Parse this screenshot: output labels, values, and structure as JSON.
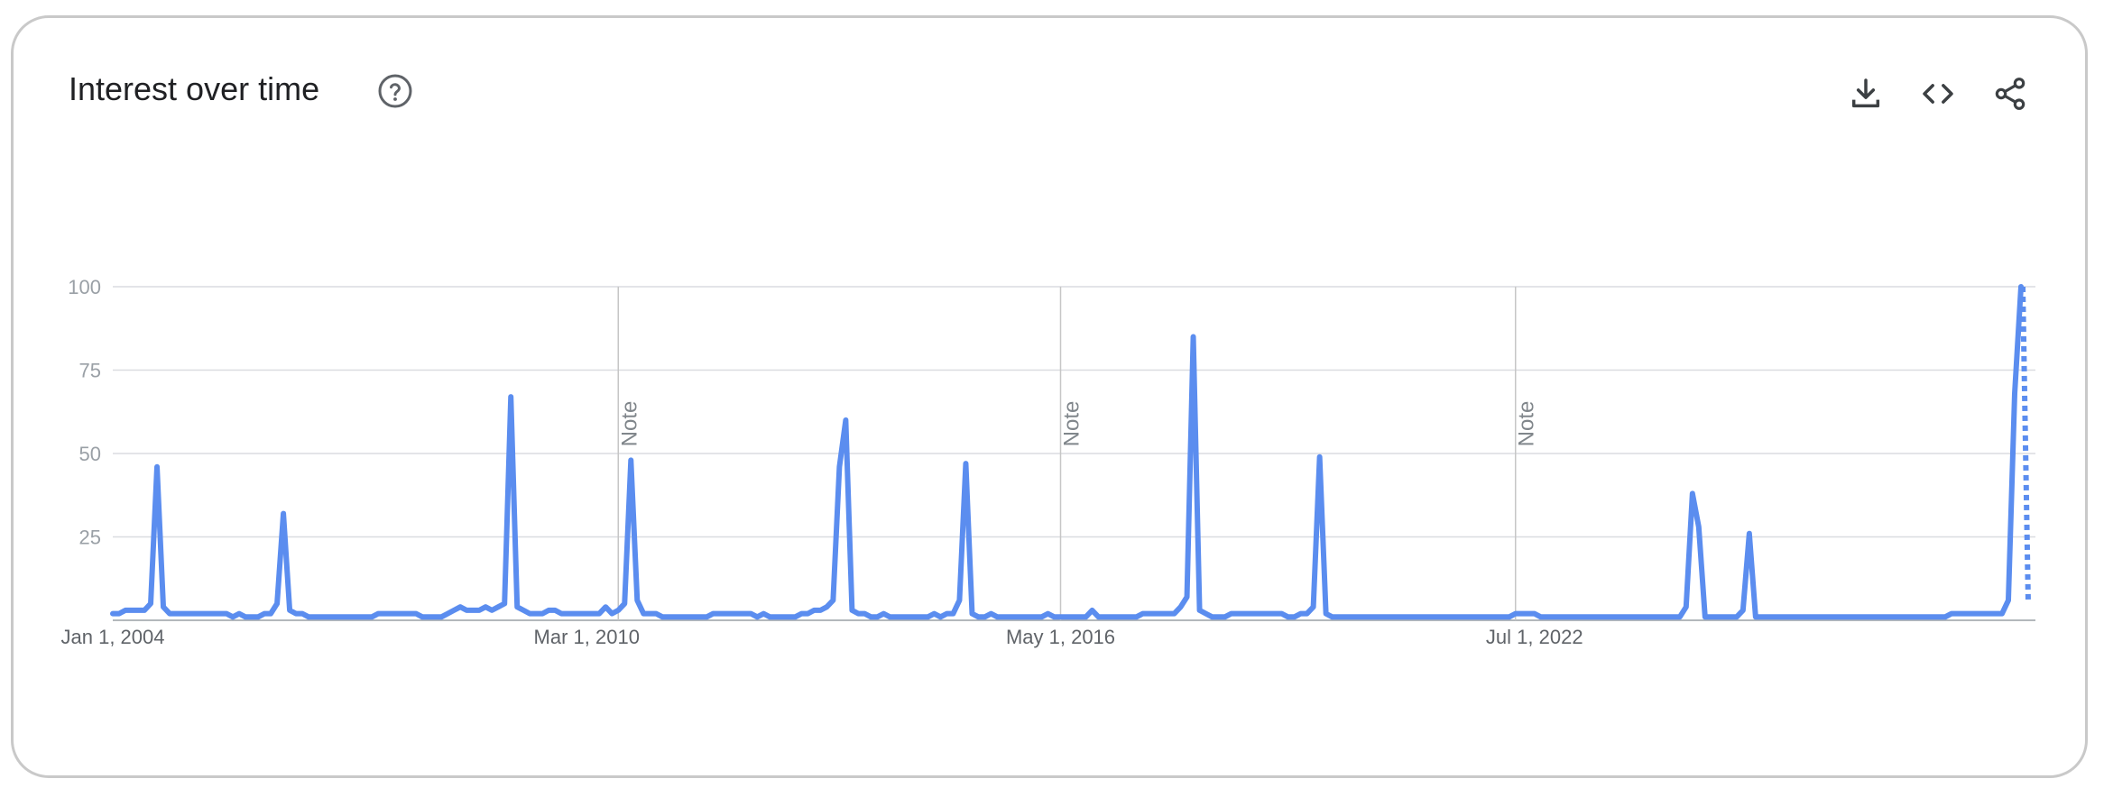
{
  "card": {
    "title": "Interest over time",
    "icons": [
      "help-icon",
      "download-icon",
      "embed-icon",
      "share-icon"
    ]
  },
  "colors": {
    "line": "#5b8def",
    "grid": "#dadce0",
    "tick_text": "#9aa0a6",
    "x_text": "#5f6368",
    "note_text": "#80868b"
  },
  "chart_data": {
    "type": "line",
    "title": "Interest over time",
    "xlabel": "",
    "ylabel": "",
    "ylim": [
      0,
      100
    ],
    "yticks": [
      25,
      50,
      75,
      100
    ],
    "x_start": "2004-01",
    "x_step": "month",
    "x_tick_labels": [
      "Jan 1, 2004",
      "Mar 1, 2010",
      "May 1, 2016",
      "Jul 1, 2022"
    ],
    "notes": [
      {
        "label": "Note",
        "date": "2010-09"
      },
      {
        "label": "Note",
        "date": "2016-07"
      },
      {
        "label": "Note",
        "date": "2022-07"
      }
    ],
    "grid": true,
    "legend": "none",
    "series": [
      {
        "values": [
          2,
          2,
          3,
          3,
          3,
          3,
          5,
          46,
          4,
          2,
          2,
          2,
          2,
          2,
          2,
          2,
          2,
          2,
          2,
          1,
          2,
          1,
          1,
          1,
          2,
          2,
          5,
          32,
          3,
          2,
          2,
          1,
          1,
          1,
          1,
          1,
          1,
          1,
          1,
          1,
          1,
          1,
          2,
          2,
          2,
          2,
          2,
          2,
          2,
          1,
          1,
          1,
          1,
          2,
          3,
          4,
          3,
          3,
          3,
          4,
          3,
          4,
          5,
          67,
          4,
          3,
          2,
          2,
          2,
          3,
          3,
          2,
          2,
          2,
          2,
          2,
          2,
          2,
          4,
          2,
          3,
          5,
          48,
          6,
          2,
          2,
          2,
          1,
          1,
          1,
          1,
          1,
          1,
          1,
          1,
          2,
          2,
          2,
          2,
          2,
          2,
          2,
          1,
          2,
          1,
          1,
          1,
          1,
          1,
          2,
          2,
          3,
          3,
          4,
          6,
          46,
          60,
          3,
          2,
          2,
          1,
          1,
          2,
          1,
          1,
          1,
          1,
          1,
          1,
          1,
          2,
          1,
          2,
          2,
          6,
          47,
          2,
          1,
          1,
          2,
          1,
          1,
          1,
          1,
          1,
          1,
          1,
          1,
          2,
          1,
          1,
          1,
          1,
          1,
          1,
          3,
          1,
          1,
          1,
          1,
          1,
          1,
          1,
          2,
          2,
          2,
          2,
          2,
          2,
          4,
          7,
          85,
          3,
          2,
          1,
          1,
          1,
          2,
          2,
          2,
          2,
          2,
          2,
          2,
          2,
          2,
          1,
          1,
          2,
          2,
          4,
          49,
          2,
          1,
          1,
          1,
          1,
          1,
          1,
          1,
          1,
          1,
          1,
          1,
          1,
          1,
          1,
          1,
          1,
          1,
          1,
          1,
          1,
          1,
          1,
          1,
          1,
          1,
          1,
          1,
          1,
          1,
          2,
          2,
          2,
          2,
          1,
          1,
          1,
          1,
          1,
          1,
          1,
          1,
          1,
          1,
          1,
          1,
          1,
          1,
          1,
          1,
          1,
          1,
          1,
          1,
          1,
          1,
          1,
          4,
          38,
          28,
          1,
          1,
          1,
          1,
          1,
          1,
          3,
          26,
          1,
          1,
          1,
          1,
          1,
          1,
          1,
          1,
          1,
          1,
          1,
          1,
          1,
          1,
          1,
          1,
          1,
          1,
          1,
          1,
          1,
          1,
          1,
          1,
          1,
          1,
          1,
          1,
          1,
          1,
          1,
          2,
          2,
          2,
          2,
          2,
          2,
          2,
          2,
          2,
          6,
          68,
          100
        ],
        "partial_last_value": 5
      }
    ]
  }
}
